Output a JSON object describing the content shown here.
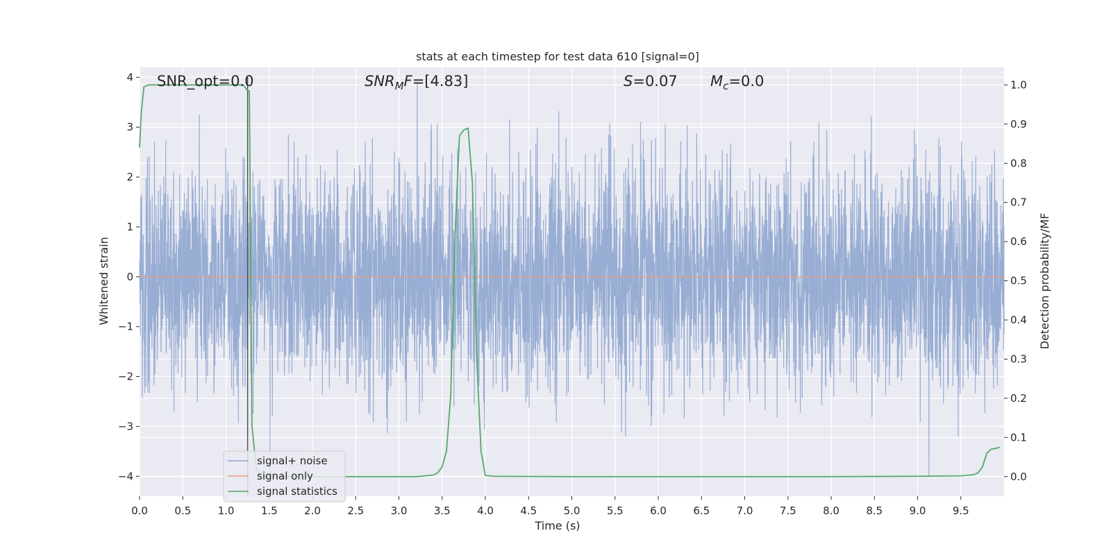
{
  "chart_data": {
    "type": "line",
    "title": "stats at each timestep for test data 610 [signal=0]",
    "xlabel": "Time (s)",
    "ylabel_left": "Whitened strain",
    "ylabel_right": "Detection probability/MF",
    "xlim": [
      0.0,
      10.0
    ],
    "ylim_left": [
      -4.4,
      4.2
    ],
    "ylim_right": [
      -0.05,
      1.045
    ],
    "x_ticks": [
      "0.0",
      "0.5",
      "1.0",
      "1.5",
      "2.0",
      "2.5",
      "3.0",
      "3.5",
      "4.0",
      "4.5",
      "5.0",
      "5.5",
      "6.0",
      "6.5",
      "7.0",
      "7.5",
      "8.0",
      "8.5",
      "9.0",
      "9.5"
    ],
    "y_ticks_left": [
      "4",
      "3",
      "2",
      "1",
      "0",
      "−1",
      "−2",
      "−3",
      "−4"
    ],
    "y_ticks_right": [
      "1.0",
      "0.9",
      "0.8",
      "0.7",
      "0.6",
      "0.5",
      "0.4",
      "0.3",
      "0.2",
      "0.1",
      "0.0"
    ],
    "grid": true,
    "legend_position": "lower-left",
    "annotations": {
      "snr_opt": "SNR_opt=0.0",
      "snr_mf_base": "SNR",
      "snr_mf_sub": "M",
      "snr_mf_rest": "F",
      "snr_mf_value": "=[4.83]",
      "s_label": "S",
      "s_value": "=0.07",
      "mc_label": "M",
      "mc_sub": "c",
      "mc_value": "=0.0"
    },
    "marker_line_x": 1.25,
    "series": [
      {
        "name": "signal+ noise",
        "color": "#8fa6cf",
        "axis": "left",
        "duration": 10.0,
        "samples": 4096,
        "amplitude_std": 1.1,
        "visible_range": [
          -4.0,
          3.9
        ]
      },
      {
        "name": "signal only",
        "color": "#e79c82",
        "axis": "left",
        "x": [
          0.0,
          10.0
        ],
        "y": [
          0.0,
          0.0
        ]
      },
      {
        "name": "signal statistics",
        "color": "#55a868",
        "axis": "right",
        "x": [
          0.0,
          0.02,
          0.05,
          0.1,
          0.2,
          0.5,
          0.8,
          1.0,
          1.15,
          1.2,
          1.25,
          1.27,
          1.3,
          1.35,
          1.4,
          1.5,
          2.0,
          2.5,
          3.0,
          3.2,
          3.3,
          3.4,
          3.45,
          3.5,
          3.55,
          3.6,
          3.65,
          3.7,
          3.75,
          3.8,
          3.85,
          3.9,
          3.95,
          4.0,
          4.1,
          5.0,
          6.0,
          7.0,
          8.0,
          9.0,
          9.5,
          9.65,
          9.7,
          9.75,
          9.8,
          9.85,
          9.9,
          9.95
        ],
        "y": [
          0.84,
          0.93,
          0.995,
          1.0,
          1.0,
          1.0,
          1.0,
          1.0,
          1.0,
          1.0,
          0.985,
          0.985,
          0.13,
          0.02,
          0.003,
          0.0,
          0.0,
          0.0,
          0.0,
          0.0,
          0.002,
          0.004,
          0.01,
          0.025,
          0.065,
          0.21,
          0.62,
          0.87,
          0.885,
          0.89,
          0.75,
          0.3,
          0.065,
          0.003,
          0.001,
          0.0,
          0.0,
          0.0,
          0.0,
          0.001,
          0.002,
          0.005,
          0.01,
          0.025,
          0.06,
          0.07,
          0.072,
          0.075
        ]
      }
    ]
  }
}
